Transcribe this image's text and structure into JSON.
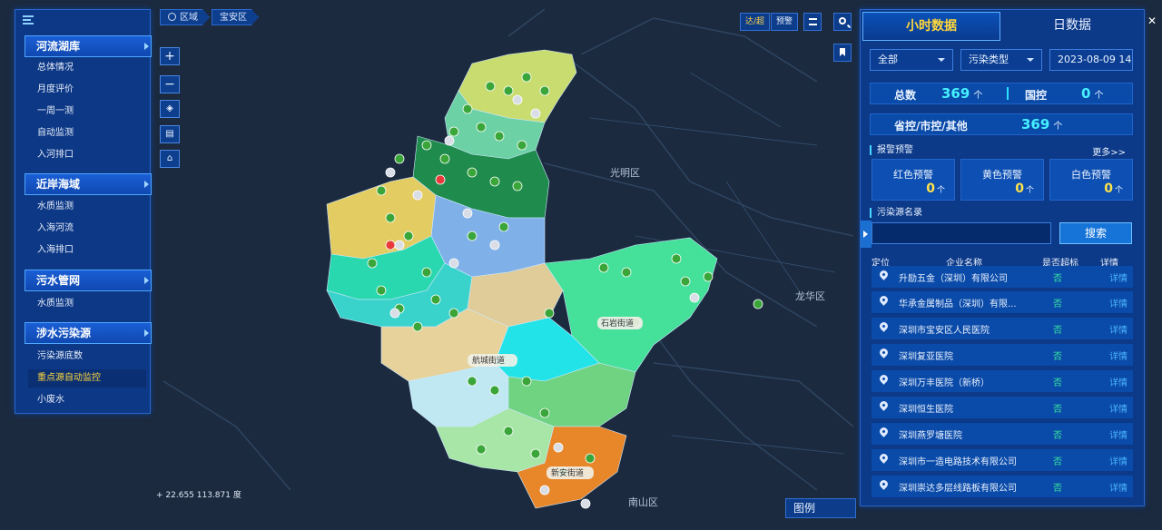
{
  "map": {
    "district_labels": [
      "光明区",
      "龙华区",
      "南山区"
    ],
    "street_labels": [
      "航城街道",
      "石岩街道",
      "新安街道"
    ],
    "coordinates": "22.655 113.871 度",
    "colors": {
      "background": "#1b2a3f",
      "region_orange": "#e8872a",
      "region_green": "#45e09a"
    }
  },
  "breadcrumb": {
    "items": [
      "区域",
      "宝安区"
    ]
  },
  "toolbar": {
    "btn1": "达/超",
    "btn2": "预警"
  },
  "left_nav": {
    "sections": [
      {
        "title": "河流湖库",
        "items": [
          "总体情况",
          "月度评价",
          "一周一测",
          "自动监测",
          "入河排口"
        ]
      },
      {
        "title": "近岸海域",
        "items": [
          "水质监测",
          "入海河流",
          "入海排口"
        ]
      },
      {
        "title": "污水管网",
        "items": [
          "水质监测"
        ]
      },
      {
        "title": "涉水污染源",
        "items": [
          "污染源底数",
          "重点源自动监控",
          "小废水"
        ]
      }
    ]
  },
  "right_panel": {
    "tabs": [
      "小时数据",
      "日数据"
    ],
    "filters": {
      "scope": "全部",
      "pollution_type": "污染类型",
      "date": "2023-08-09 14"
    },
    "stats": {
      "total_label": "总数",
      "total_value": "369",
      "unit": "个",
      "national_label": "国控",
      "national_value": "0",
      "provincial_label": "省控/市控/其他",
      "provincial_value": "369"
    },
    "alarm_title": "报警预警",
    "more": "更多>>",
    "alarms": [
      {
        "label": "红色预警",
        "value": "0"
      },
      {
        "label": "黄色预警",
        "value": "0"
      },
      {
        "label": "白色预警",
        "value": "0"
      }
    ],
    "list_title": "污染源名录",
    "search_value": "",
    "search_btn": "搜索",
    "columns": [
      "定位",
      "企业名称",
      "是否超标",
      "详情"
    ],
    "rows": [
      {
        "name": "升励五金（深圳）有限公司",
        "flag": "否",
        "detail": "详情"
      },
      {
        "name": "华承金属制品（深圳）有限...",
        "flag": "否",
        "detail": "详情"
      },
      {
        "name": "深圳市宝安区人民医院",
        "flag": "否",
        "detail": "详情"
      },
      {
        "name": "深圳复亚医院",
        "flag": "否",
        "detail": "详情"
      },
      {
        "name": "深圳万丰医院（新桥）",
        "flag": "否",
        "detail": "详情"
      },
      {
        "name": "深圳恒生医院",
        "flag": "否",
        "detail": "详情"
      },
      {
        "name": "深圳燕罗塘医院",
        "flag": "否",
        "detail": "详情"
      },
      {
        "name": "深圳市一造电路技术有限公司",
        "flag": "否",
        "detail": "详情"
      },
      {
        "name": "深圳崇达多层线路板有限公司",
        "flag": "否",
        "detail": "详情"
      }
    ]
  },
  "legend": {
    "label": "图例"
  }
}
